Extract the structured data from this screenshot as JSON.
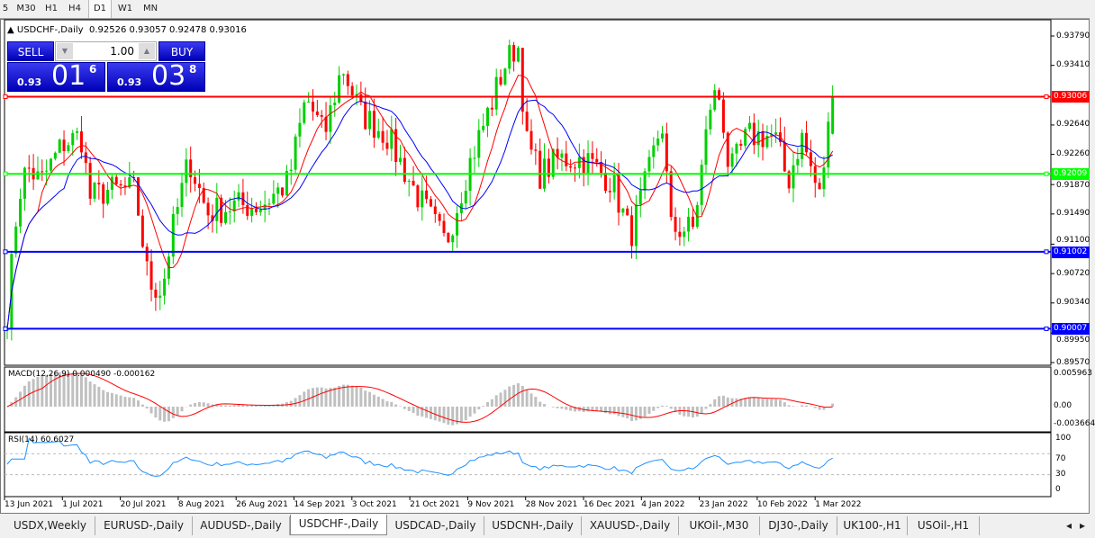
{
  "timeframes": [
    {
      "label": "5"
    },
    {
      "label": "M30"
    },
    {
      "label": "H1"
    },
    {
      "label": "H4"
    },
    {
      "label": "D1",
      "active": true
    },
    {
      "label": "W1"
    },
    {
      "label": "MN"
    }
  ],
  "chart": {
    "title": "USDCHF-,Daily",
    "ohlc": "0.92526 0.93057 0.92478 0.93016"
  },
  "trade_panel": {
    "sell_label": "SELL",
    "buy_label": "BUY",
    "lot": "1.00",
    "sell_small": "0.93",
    "sell_big": "01",
    "sell_sup": "6",
    "buy_small": "0.93",
    "buy_big": "03",
    "buy_sup": "8"
  },
  "price_axis": [
    "0.93790",
    "0.93410",
    "0.92640",
    "0.92260",
    "0.91870",
    "0.91490",
    "0.91100",
    "0.90720",
    "0.90340",
    "0.89950",
    "0.89570"
  ],
  "hlines": [
    {
      "price": "0.93006",
      "color": "#ff0000"
    },
    {
      "price": "0.92009",
      "color": "#00ff00"
    },
    {
      "price": "0.91002",
      "color": "#0000ff"
    },
    {
      "price": "0.90007",
      "color": "#0000ff"
    }
  ],
  "macd": {
    "label": "MACD(12,26,9) 0.000490 -0.000162",
    "axis": [
      "0.005963",
      "0.00",
      "-0.003664"
    ]
  },
  "rsi": {
    "label": "RSI(14) 60.6027",
    "axis": [
      "100",
      "70",
      "30",
      "0"
    ]
  },
  "dates": [
    "13 Jun 2021",
    "1 Jul 2021",
    "20 Jul 2021",
    "8 Aug 2021",
    "26 Aug 2021",
    "14 Sep 2021",
    "3 Oct 2021",
    "21 Oct 2021",
    "9 Nov 2021",
    "28 Nov 2021",
    "16 Dec 2021",
    "4 Jan 2022",
    "23 Jan 2022",
    "10 Feb 2022",
    "1 Mar 2022"
  ],
  "tabs": [
    {
      "label": "USDX,Weekly"
    },
    {
      "label": "EURUSD-,Daily"
    },
    {
      "label": "AUDUSD-,Daily"
    },
    {
      "label": "USDCHF-,Daily",
      "active": true
    },
    {
      "label": "USDCAD-,Daily"
    },
    {
      "label": "USDCNH-,Daily"
    },
    {
      "label": "XAUUSD-,Daily"
    },
    {
      "label": "UKOil-,M30"
    },
    {
      "label": "DJ30-,Daily"
    },
    {
      "label": "UK100-,H1"
    },
    {
      "label": "USOil-,H1"
    }
  ],
  "colors": {
    "bull": "#00d000",
    "bear": "#ff0000",
    "ma_fast": "#ff0000",
    "ma_slow": "#0000ff",
    "rsi": "#1e90ff",
    "macd_hist": "#c0c0c0"
  }
}
